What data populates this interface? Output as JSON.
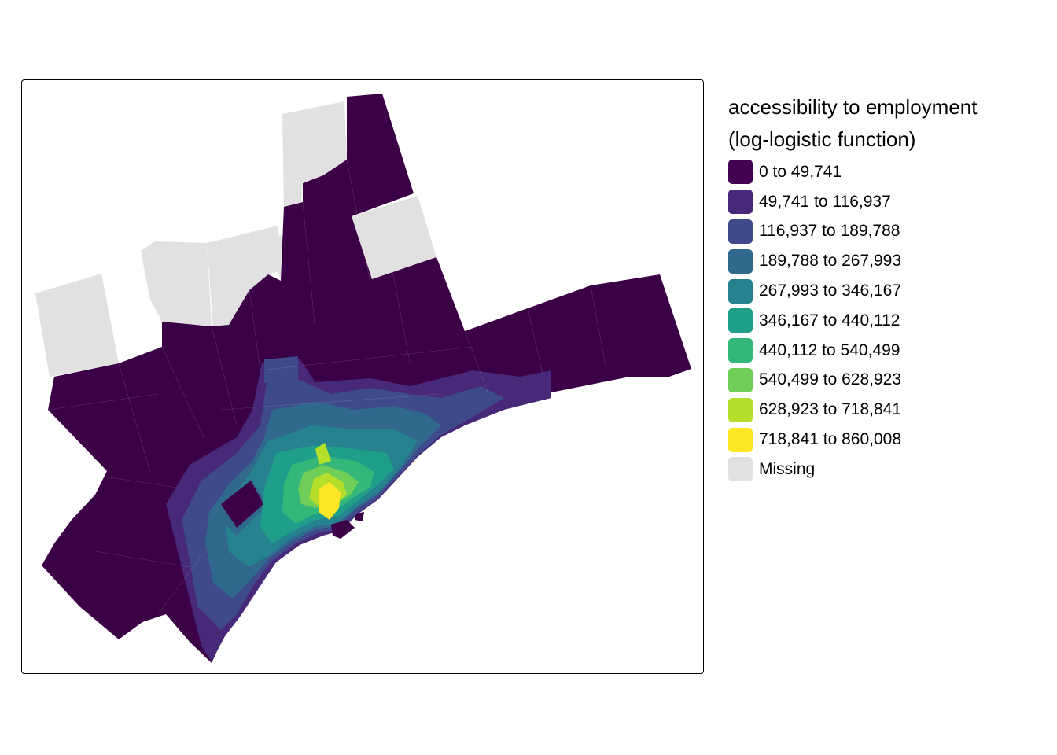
{
  "legend": {
    "title_line1": "accessibility to employment",
    "title_line2": "(log-logistic function)",
    "items": [
      {
        "label": "0 to 49,741",
        "color": "#440154"
      },
      {
        "label": "49,741 to 116,937",
        "color": "#482878"
      },
      {
        "label": "116,937 to 189,788",
        "color": "#3e4a89"
      },
      {
        "label": "189,788 to 267,993",
        "color": "#31688e"
      },
      {
        "label": "267,993 to 346,167",
        "color": "#26828e"
      },
      {
        "label": "346,167 to 440,112",
        "color": "#1f9e89"
      },
      {
        "label": "440,112 to 540,499",
        "color": "#35b779"
      },
      {
        "label": "540,499 to 628,923",
        "color": "#6ece58"
      },
      {
        "label": "628,923 to 718,841",
        "color": "#b5de2b"
      },
      {
        "label": "718,841 to 860,008",
        "color": "#fde725"
      },
      {
        "label": "Missing",
        "color": "#e1e1e1"
      }
    ]
  },
  "map": {
    "base_color": "#3b0045",
    "missing_color": "#e1e1e1"
  }
}
